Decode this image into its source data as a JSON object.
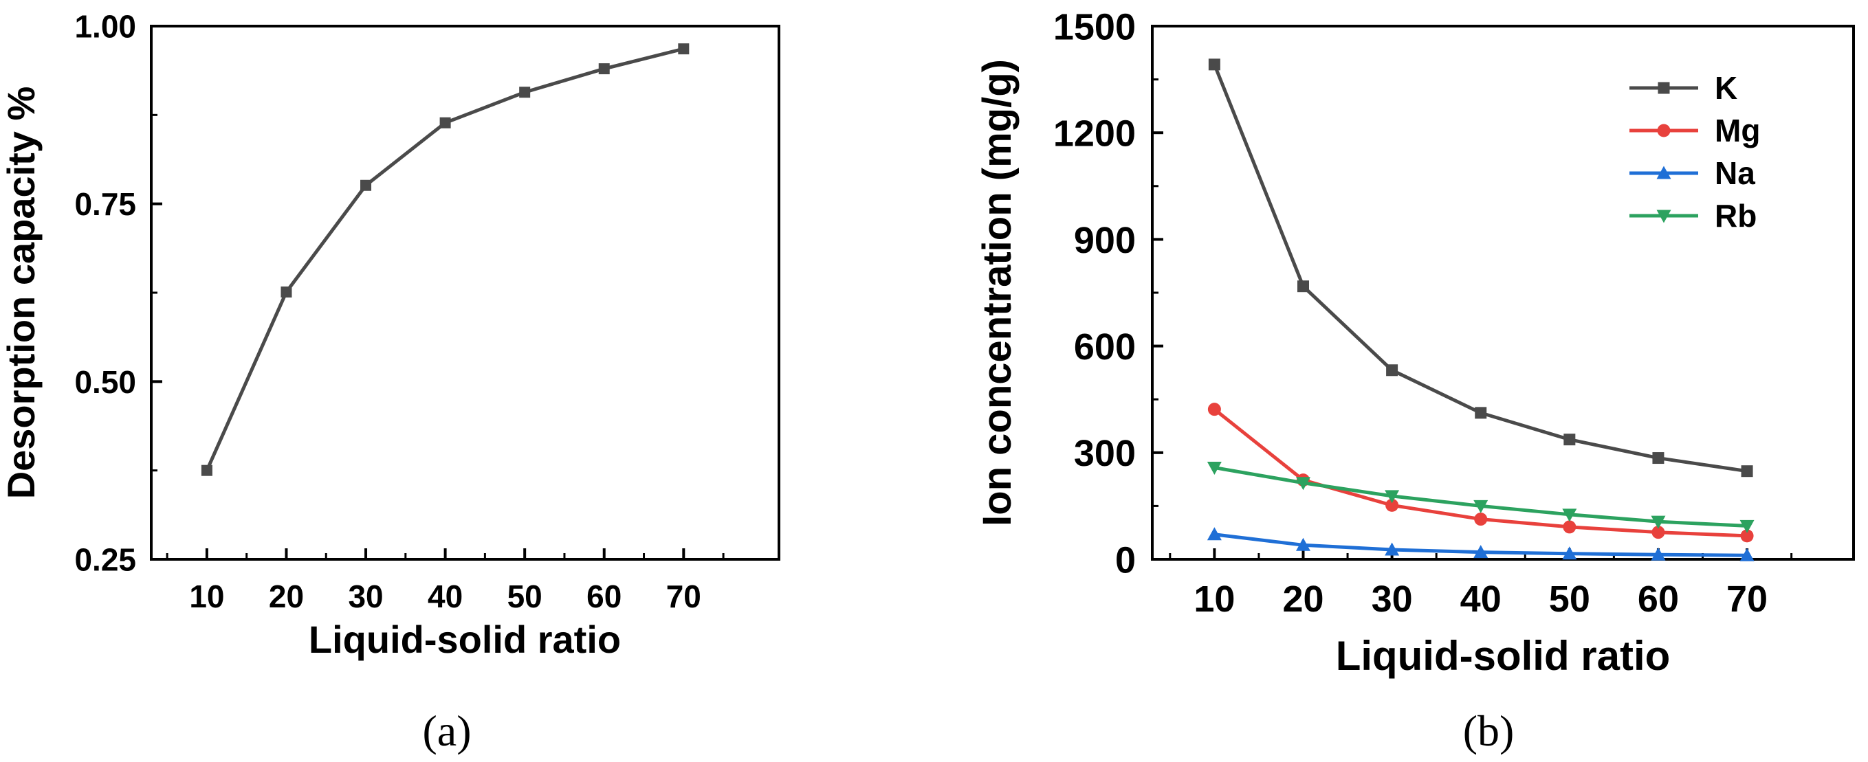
{
  "chart_data": [
    {
      "id": "a",
      "panel_label": "(a)",
      "type": "line",
      "xlabel": "Liquid-solid ratio",
      "ylabel": "Desorption capacity  %",
      "xlim": [
        3,
        82
      ],
      "ylim": [
        0.25,
        1.0
      ],
      "xticks": [
        10,
        20,
        30,
        40,
        50,
        60,
        70
      ],
      "xtick_labels": [
        "10",
        "20",
        "30",
        "40",
        "50",
        "60",
        "70"
      ],
      "yticks": [
        0.25,
        0.5,
        0.75,
        1.0
      ],
      "ytick_labels": [
        "0.25",
        "0.50",
        "0.75",
        "1.00"
      ],
      "x": [
        10,
        20,
        30,
        40,
        50,
        60,
        70
      ],
      "series": [
        {
          "name": "Desorption capacity",
          "color": "#4a4a4a",
          "marker": "square",
          "values": [
            0.375,
            0.626,
            0.776,
            0.864,
            0.907,
            0.94,
            0.968
          ]
        }
      ]
    },
    {
      "id": "b",
      "panel_label": "(b)",
      "type": "line",
      "xlabel": "Liquid-solid ratio",
      "ylabel": "Ion concentration (mg/g)",
      "xlim": [
        3,
        82
      ],
      "ylim": [
        0,
        1500
      ],
      "xticks": [
        10,
        20,
        30,
        40,
        50,
        60,
        70
      ],
      "xtick_labels": [
        "10",
        "20",
        "30",
        "40",
        "50",
        "60",
        "70"
      ],
      "yticks": [
        0,
        300,
        600,
        900,
        1200,
        1500
      ],
      "ytick_labels": [
        "0",
        "300",
        "600",
        "900",
        "1200",
        "1500"
      ],
      "x": [
        10,
        20,
        30,
        40,
        50,
        60,
        70
      ],
      "legend_position": "top-right",
      "series": [
        {
          "name": "K",
          "color": "#4a4a4a",
          "marker": "square",
          "values": [
            1392,
            768,
            532,
            412,
            337,
            285,
            248
          ]
        },
        {
          "name": "Mg",
          "color": "#e8413c",
          "marker": "circle",
          "values": [
            422,
            223,
            152,
            113,
            91,
            76,
            66
          ]
        },
        {
          "name": "Na",
          "color": "#1f6fd6",
          "marker": "triangle-up",
          "values": [
            70,
            40,
            27,
            20,
            16,
            13,
            11
          ]
        },
        {
          "name": "Rb",
          "color": "#2ca25f",
          "marker": "triangle-down",
          "values": [
            258,
            215,
            178,
            150,
            126,
            106,
            94
          ]
        }
      ]
    }
  ]
}
